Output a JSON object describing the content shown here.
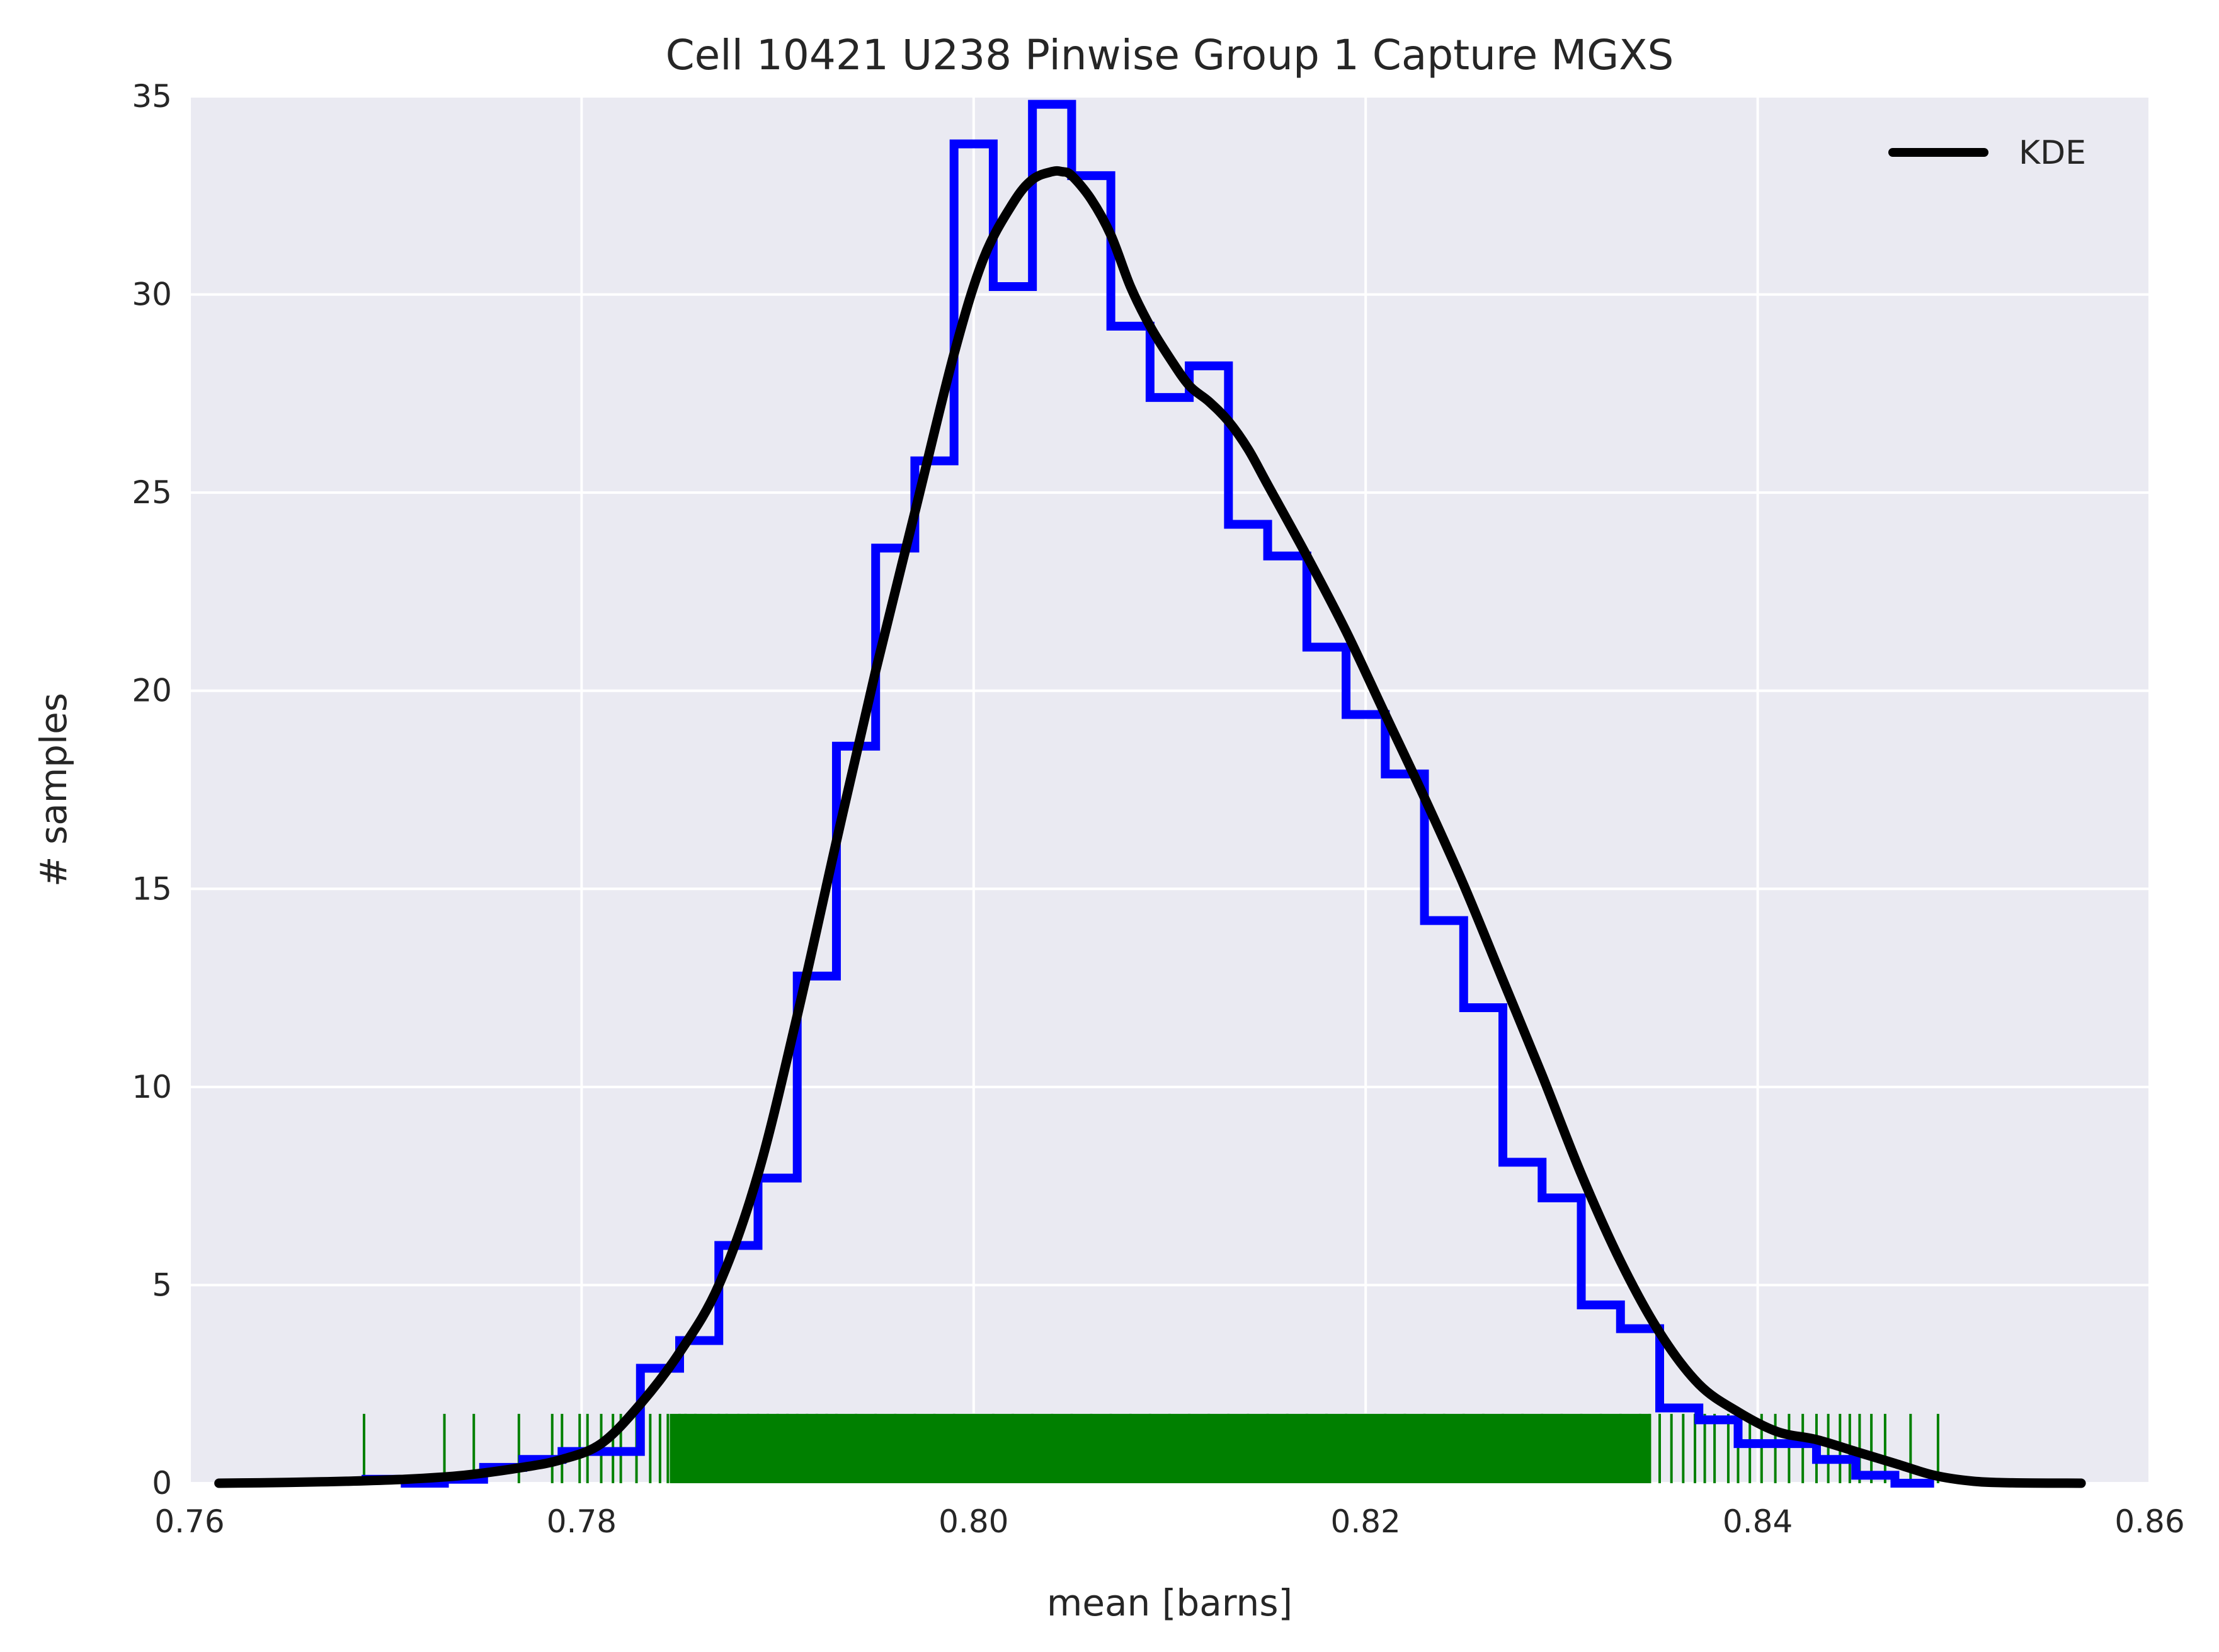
{
  "chart_data": {
    "type": "bar",
    "title": "Cell 10421 U238 Pinwise Group 1 Capture MGXS",
    "xlabel": "mean [barns]",
    "ylabel": "# samples",
    "xlim": [
      0.76,
      0.86
    ],
    "ylim": [
      0,
      35
    ],
    "x_ticks": [
      0.76,
      0.78,
      0.8,
      0.82,
      0.84,
      0.86
    ],
    "x_tick_labels": [
      "0.76",
      "0.78",
      "0.80",
      "0.82",
      "0.84",
      "0.86"
    ],
    "y_ticks": [
      0,
      5,
      10,
      15,
      20,
      25,
      30,
      35
    ],
    "y_tick_labels": [
      "0",
      "5",
      "10",
      "15",
      "20",
      "25",
      "30",
      "35"
    ],
    "grid": true,
    "legend": {
      "position": "top-right",
      "entries": [
        "KDE"
      ]
    },
    "colors": {
      "background": "#eaeaf2",
      "grid": "#ffffff",
      "histogram": "#0000ff",
      "kde": "#000000",
      "rug": "#008000"
    },
    "histogram": {
      "bin_edges": [
        0.769,
        0.771,
        0.773,
        0.775,
        0.777,
        0.779,
        0.781,
        0.783,
        0.785,
        0.787,
        0.789,
        0.791,
        0.793,
        0.795,
        0.797,
        0.799,
        0.801,
        0.803,
        0.805,
        0.807,
        0.809,
        0.811,
        0.813,
        0.815,
        0.817,
        0.819,
        0.821,
        0.823,
        0.825,
        0.827,
        0.829,
        0.831,
        0.833,
        0.835,
        0.837,
        0.839,
        0.841,
        0.843,
        0.845,
        0.847,
        0.849
      ],
      "counts": [
        0.1,
        0.0,
        0.1,
        0.4,
        0.6,
        0.8,
        0.8,
        2.9,
        3.6,
        6.0,
        7.7,
        12.8,
        18.6,
        23.6,
        25.8,
        33.8,
        30.2,
        34.8,
        33.0,
        29.2,
        27.4,
        28.2,
        24.2,
        23.4,
        21.1,
        19.4,
        17.9,
        14.2,
        12.0,
        8.1,
        7.2,
        4.5,
        3.9,
        1.9,
        1.6,
        1.0,
        1.0,
        0.6,
        0.2,
        0.0
      ]
    },
    "kde": {
      "x": [
        0.7615,
        0.765,
        0.768,
        0.771,
        0.774,
        0.777,
        0.779,
        0.781,
        0.783,
        0.785,
        0.787,
        0.789,
        0.791,
        0.793,
        0.795,
        0.797,
        0.799,
        0.8005,
        0.802,
        0.803,
        0.804,
        0.8045,
        0.805,
        0.806,
        0.807,
        0.808,
        0.809,
        0.81,
        0.811,
        0.812,
        0.813,
        0.814,
        0.815,
        0.817,
        0.819,
        0.821,
        0.823,
        0.825,
        0.827,
        0.829,
        0.831,
        0.833,
        0.835,
        0.837,
        0.839,
        0.841,
        0.843,
        0.845,
        0.847,
        0.849,
        0.851,
        0.853,
        0.8565
      ],
      "y": [
        0.0,
        0.02,
        0.05,
        0.1,
        0.2,
        0.4,
        0.6,
        1.0,
        2.0,
        3.3,
        5.0,
        7.8,
        11.8,
        16.2,
        20.5,
        24.5,
        28.5,
        30.9,
        32.3,
        32.9,
        33.1,
        33.1,
        33.0,
        32.4,
        31.5,
        30.2,
        29.2,
        28.4,
        27.7,
        27.3,
        26.8,
        26.1,
        25.2,
        23.4,
        21.5,
        19.4,
        17.3,
        15.1,
        12.7,
        10.3,
        7.8,
        5.6,
        3.8,
        2.5,
        1.8,
        1.3,
        1.1,
        0.8,
        0.5,
        0.2,
        0.05,
        0.01,
        0.0
      ]
    },
    "rug": {
      "x": [
        0.7689,
        0.773,
        0.7745,
        0.7768,
        0.7785,
        0.779,
        0.7799,
        0.7803,
        0.781,
        0.7816,
        0.782,
        0.7828,
        0.7835,
        0.784,
        0.7844,
        0.785,
        0.7853,
        0.7858,
        0.7866,
        0.787,
        0.7874,
        0.788,
        0.7885,
        0.789,
        0.7895,
        0.79,
        0.7905,
        0.791,
        0.7915,
        0.792,
        0.7925,
        0.793,
        0.794,
        0.795,
        0.796,
        0.797,
        0.798,
        0.799,
        0.8,
        0.801,
        0.802,
        0.803,
        0.804,
        0.805,
        0.806,
        0.807,
        0.808,
        0.809,
        0.81,
        0.811,
        0.812,
        0.813,
        0.814,
        0.815,
        0.816,
        0.817,
        0.818,
        0.819,
        0.82,
        0.821,
        0.822,
        0.823,
        0.824,
        0.825,
        0.826,
        0.827,
        0.828,
        0.829,
        0.83,
        0.831,
        0.832,
        0.833,
        0.834,
        0.8345,
        0.835,
        0.8356,
        0.8362,
        0.8368,
        0.8373,
        0.8378,
        0.8385,
        0.839,
        0.8396,
        0.8402,
        0.8409,
        0.8416,
        0.8423,
        0.843,
        0.8436,
        0.8442,
        0.8447,
        0.8452,
        0.8458,
        0.8465,
        0.8478,
        0.8492
      ]
    }
  }
}
